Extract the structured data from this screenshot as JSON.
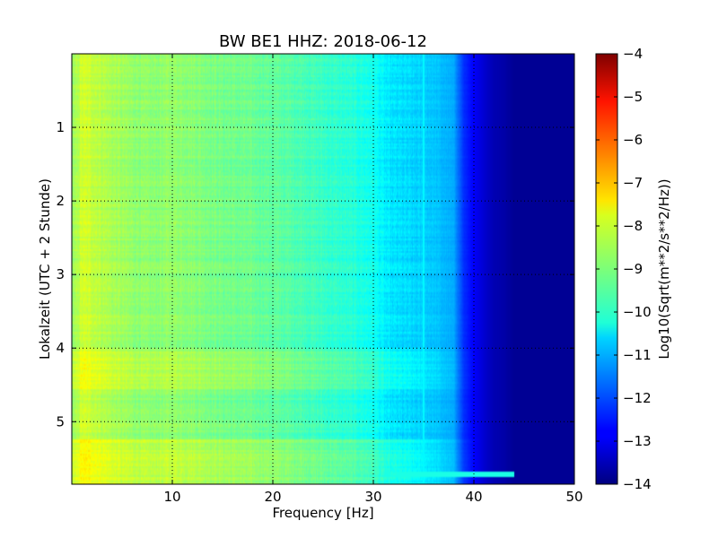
{
  "chart_data": {
    "type": "heatmap",
    "title": "BW BE1 HHZ: 2018-06-12",
    "xlabel": "Frequency [Hz]",
    "ylabel": "Lokalzeit (UTC + 2 Stunde)",
    "xlim": [
      0,
      50
    ],
    "ylim": [
      5.85,
      0
    ],
    "x_ticks": [
      10,
      20,
      30,
      40,
      50
    ],
    "y_ticks": [
      1,
      2,
      3,
      4,
      5
    ],
    "grid": true,
    "grid_style": "dotted",
    "colormap": "jet",
    "colorbar": {
      "label": "Log10(Sqrt(m**2/s**2/Hz))",
      "range": [
        -14,
        -4
      ],
      "ticks": [
        -4,
        -5,
        -6,
        -7,
        -8,
        -9,
        -10,
        -11,
        -12,
        -13,
        -14
      ],
      "placement": "right"
    },
    "frequency_profile": {
      "frequency_hz": [
        0,
        1,
        2,
        4,
        6,
        8,
        10,
        12,
        15,
        18,
        20,
        23,
        25,
        28,
        30,
        31.5,
        33,
        36,
        38,
        39,
        40,
        41,
        42,
        43,
        44,
        50
      ],
      "log10_amplitude": [
        -8.9,
        -8.2,
        -8.3,
        -8.6,
        -8.8,
        -8.9,
        -8.8,
        -8.9,
        -9.1,
        -9.2,
        -9.3,
        -9.5,
        -9.7,
        -9.9,
        -10.1,
        -10.5,
        -10.6,
        -10.8,
        -11.1,
        -12.3,
        -12.8,
        -13.2,
        -13.5,
        -13.6,
        -13.8,
        -13.8
      ]
    },
    "features": [
      {
        "type": "vertical_line",
        "frequency_hz": 35,
        "log10_amplitude": -10.3
      },
      {
        "type": "horizontal_band",
        "time_h": 5.72,
        "freq_range": [
          15,
          44
        ],
        "log10_amplitude": -10.0
      },
      {
        "type": "time_band",
        "time_range": [
          4.05,
          4.55
        ],
        "log10_amplitude_offset": 0.35
      },
      {
        "type": "time_band",
        "time_range": [
          5.25,
          5.85
        ],
        "log10_amplitude_offset": 0.45
      }
    ]
  }
}
